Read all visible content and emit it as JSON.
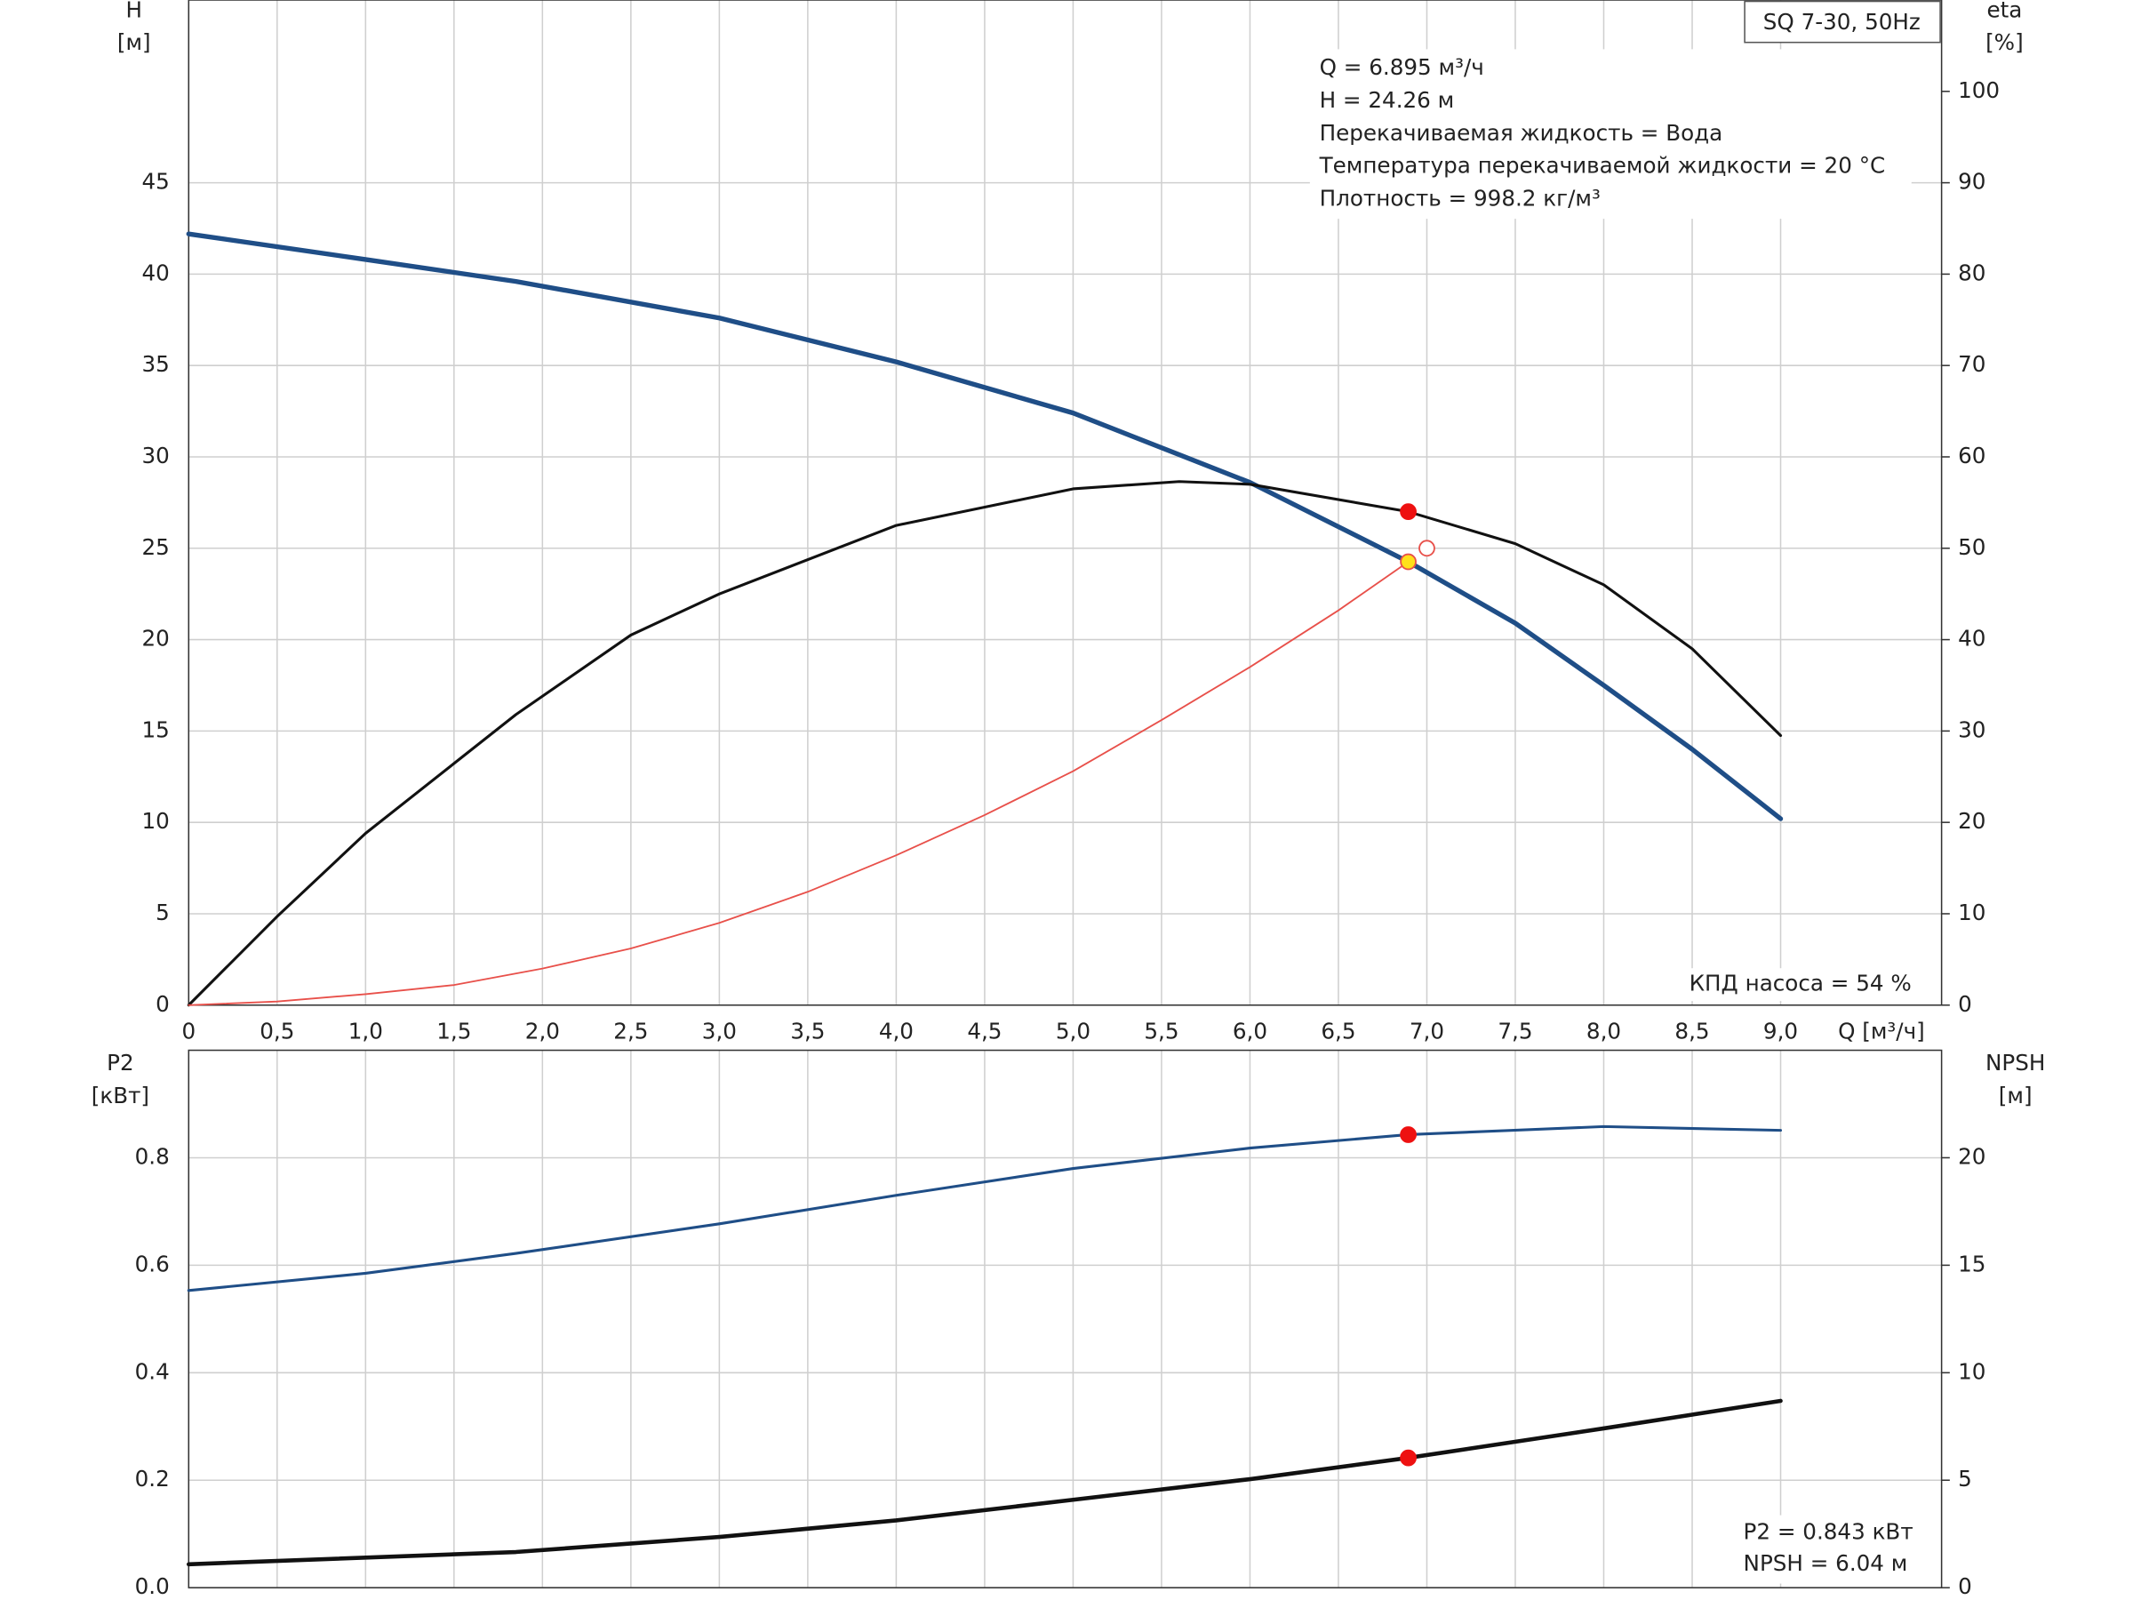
{
  "chart_data": [
    {
      "type": "line",
      "model_label": "SQ 7-30, 50Hz",
      "ylabel": "H",
      "yunit": "[м]",
      "y2label": "eta",
      "y2unit": "[%]",
      "xlabel": "Q [м³/ч]",
      "annotations": [
        "Q = 6.895 м³/ч",
        "H = 24.26 м",
        "Перекачиваемая жидкость = Вода",
        "Температура перекачиваемой жидкости = 20 °C",
        "Плотность = 998.2 кг/м³"
      ],
      "footer_text": "КПД насоса = 54 %",
      "xlim": [
        0,
        9.91
      ],
      "xticks": [
        0,
        {
          "value": 0.5,
          "label": "0,5"
        },
        {
          "value": 1.0,
          "label": "1,0"
        },
        {
          "value": 1.5,
          "label": "1,5"
        },
        {
          "value": 2.0,
          "label": "2,0"
        },
        {
          "value": 2.5,
          "label": "2,5"
        },
        {
          "value": 3.0,
          "label": "3,0"
        },
        {
          "value": 3.5,
          "label": "3,5"
        },
        {
          "value": 4.0,
          "label": "4,0"
        },
        {
          "value": 4.5,
          "label": "4,5"
        },
        {
          "value": 5.0,
          "label": "5,0"
        },
        {
          "value": 5.5,
          "label": "5,5"
        },
        {
          "value": 6.0,
          "label": "6,0"
        },
        {
          "value": 6.5,
          "label": "6,5"
        },
        {
          "value": 7.0,
          "label": "7,0"
        },
        {
          "value": 7.5,
          "label": "7,5"
        },
        {
          "value": 8.0,
          "label": "8,0"
        },
        {
          "value": 8.5,
          "label": "8,5"
        },
        {
          "value": 9.0,
          "label": "9,0"
        }
      ],
      "ylim": [
        0,
        55
      ],
      "yticks": [
        0,
        5,
        10,
        15,
        20,
        25,
        30,
        35,
        40,
        45
      ],
      "y2lim": [
        0,
        110
      ],
      "y2ticks": [
        0,
        10,
        20,
        30,
        40,
        50,
        60,
        70,
        80,
        90,
        100
      ],
      "grid": true,
      "series": [
        {
          "color": "#1f4e87",
          "line_width": 3.5,
          "x": [
            0,
            1.0,
            1.85,
            3.0,
            4.0,
            5.0,
            6.0,
            6.895,
            7.5,
            8.0,
            8.5,
            9.0
          ],
          "values": [
            42.2,
            40.8,
            39.6,
            37.6,
            35.2,
            32.4,
            28.6,
            24.26,
            20.9,
            17.5,
            14.0,
            10.2
          ]
        },
        {
          "color": "#111111",
          "line_width": 2,
          "axis": "y2",
          "x": [
            0,
            0.5,
            1.0,
            1.85,
            2.5,
            3.0,
            4.0,
            5.0,
            5.6,
            6.0,
            6.895,
            7.5,
            8.0,
            8.5,
            9.0
          ],
          "values": [
            0,
            9.7,
            18.8,
            31.8,
            40.5,
            45.0,
            52.5,
            56.5,
            57.3,
            57.0,
            54.0,
            50.5,
            46.0,
            39.0,
            29.5
          ]
        },
        {
          "color": "#e8504a",
          "line_width": 1.2,
          "x": [
            0,
            0.5,
            1.0,
            1.5,
            2.0,
            2.5,
            3.0,
            3.5,
            4.0,
            4.5,
            5.0,
            5.5,
            6.0,
            6.5,
            6.895
          ],
          "values": [
            0,
            0.2,
            0.6,
            1.1,
            2.0,
            3.1,
            4.5,
            6.2,
            8.2,
            10.4,
            12.8,
            15.6,
            18.5,
            21.6,
            24.26
          ]
        }
      ],
      "points": [
        {
          "x": 6.895,
          "y": 54,
          "axis": "y2",
          "color": "#ee1111"
        },
        {
          "x": 6.895,
          "y": 24.26,
          "color": "#ffe01a"
        },
        {
          "x": 7.0,
          "y": 25.0,
          "color": "#ffffff"
        }
      ]
    },
    {
      "type": "line",
      "ylabel": "P2",
      "yunit": "[кВт]",
      "y2label": "NPSH",
      "y2unit": "[м]",
      "annotations": [
        "P2 = 0.843 кВт",
        "NPSH = 6.04 м"
      ],
      "xlim": [
        0,
        9.91
      ],
      "xticks": [
        0,
        0.5,
        1.0,
        1.5,
        2.0,
        2.5,
        3.0,
        3.5,
        4.0,
        4.5,
        5.0,
        5.5,
        6.0,
        6.5,
        7.0,
        7.5,
        8.0,
        8.5,
        9.0
      ],
      "ylim": [
        0,
        1.0
      ],
      "yticks": [
        {
          "value": 0,
          "label": "0.0"
        },
        0.2,
        0.4,
        0.6,
        0.8
      ],
      "y2lim": [
        0,
        25
      ],
      "y2ticks": [
        0,
        5,
        10,
        15,
        20
      ],
      "grid": true,
      "series": [
        {
          "color": "#1f4e87",
          "line_width": 2,
          "x": [
            0,
            1.0,
            1.85,
            3.0,
            4.0,
            5.0,
            6.0,
            6.895,
            8.0,
            9.0
          ],
          "values": [
            0.553,
            0.585,
            0.622,
            0.677,
            0.73,
            0.78,
            0.818,
            0.843,
            0.858,
            0.851
          ]
        },
        {
          "color": "#111111",
          "line_width": 3,
          "axis": "y2",
          "x": [
            0,
            1.85,
            3.0,
            4.0,
            5.0,
            6.0,
            6.895,
            8.0,
            9.0
          ],
          "values": [
            1.09,
            1.66,
            2.36,
            3.13,
            4.09,
            5.05,
            6.04,
            7.41,
            8.69
          ]
        }
      ],
      "points": [
        {
          "x": 6.895,
          "y": 0.843,
          "color": "#ee1111"
        },
        {
          "x": 6.895,
          "y": 6.04,
          "axis": "y2",
          "color": "#ee1111"
        }
      ]
    }
  ]
}
